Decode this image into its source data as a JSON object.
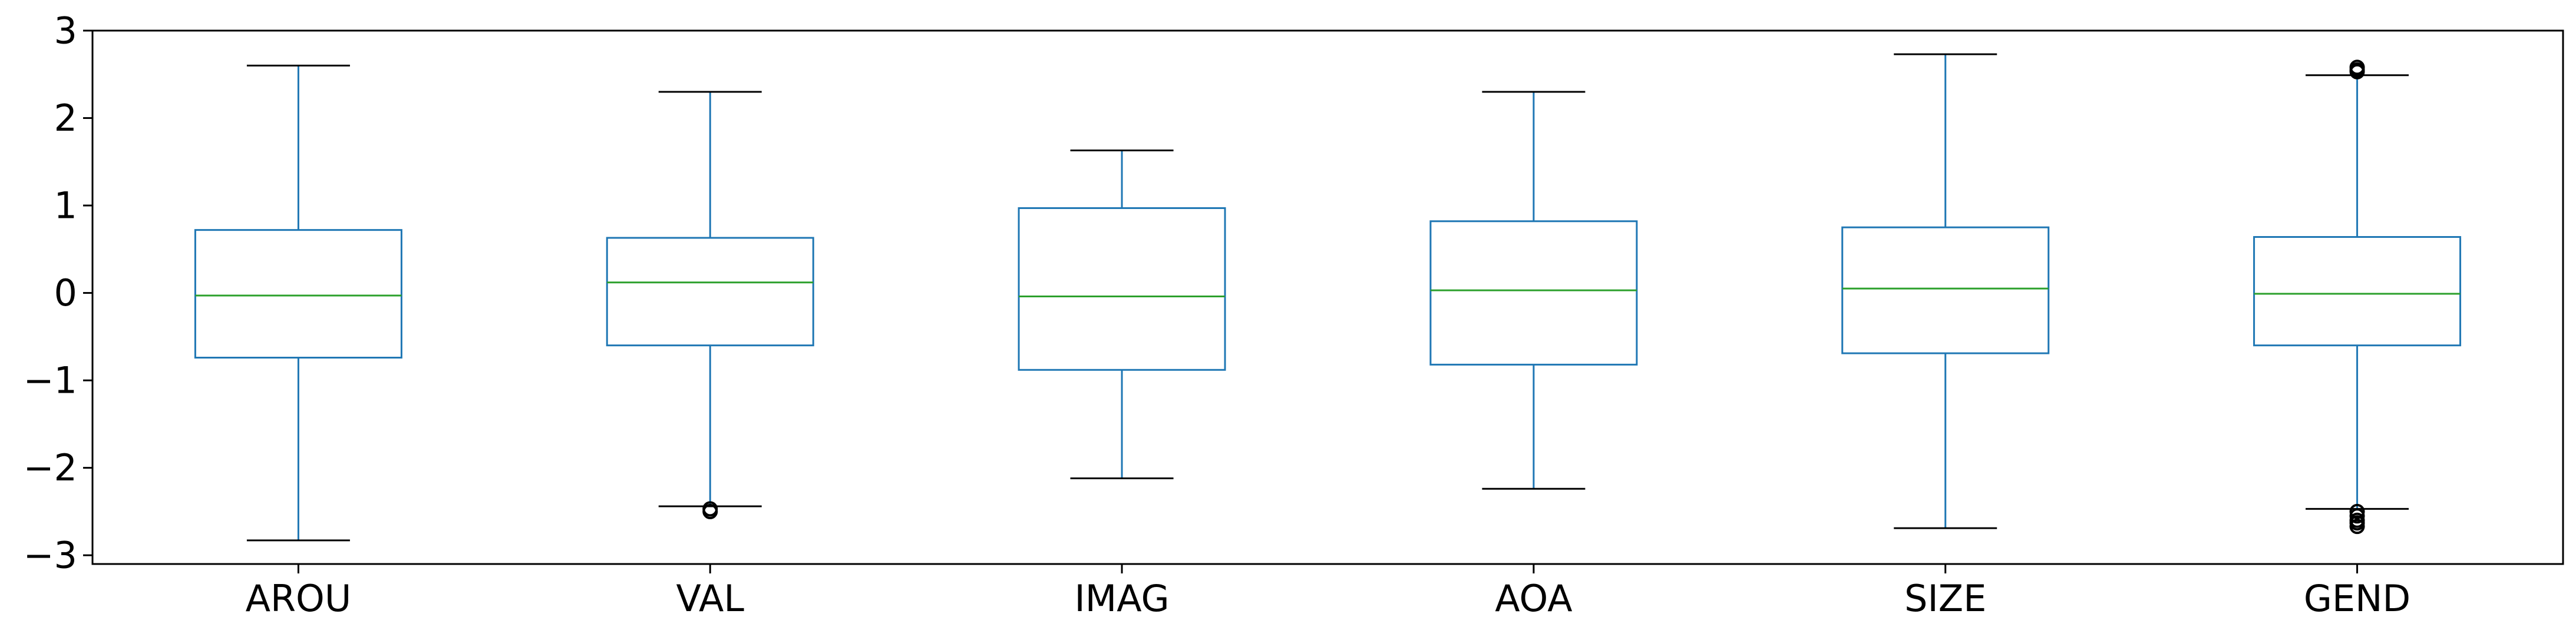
{
  "chart_data": {
    "type": "box",
    "title": "",
    "xlabel": "",
    "ylabel": "",
    "ylim": [
      -3.1,
      3.0
    ],
    "yticks": [
      3,
      2,
      1,
      0,
      -1,
      -2,
      -3
    ],
    "ytick_labels": [
      "3",
      "2",
      "1",
      "0",
      "−1",
      "−2",
      "−3"
    ],
    "grid": false,
    "colors": {
      "box": "#1f77b4",
      "median": "#2ca02c",
      "whisker": "#1f77b4",
      "cap": "#000000",
      "flier": "#000000",
      "axis": "#000000"
    },
    "categories": [
      "AROU",
      "VAL",
      "IMAG",
      "AOA",
      "SIZE",
      "GEND"
    ],
    "boxes": [
      {
        "label": "AROU",
        "whisker_low": -2.83,
        "q1": -0.74,
        "median": -0.03,
        "q3": 0.72,
        "whisker_high": 2.6,
        "fliers": []
      },
      {
        "label": "VAL",
        "whisker_low": -2.44,
        "q1": -0.6,
        "median": 0.12,
        "q3": 0.63,
        "whisker_high": 2.3,
        "fliers": [
          -2.47,
          -2.5
        ]
      },
      {
        "label": "IMAG",
        "whisker_low": -2.12,
        "q1": -0.88,
        "median": -0.04,
        "q3": 0.97,
        "whisker_high": 1.63,
        "fliers": []
      },
      {
        "label": "AOA",
        "whisker_low": -2.24,
        "q1": -0.82,
        "median": 0.03,
        "q3": 0.82,
        "whisker_high": 2.3,
        "fliers": []
      },
      {
        "label": "SIZE",
        "whisker_low": -2.69,
        "q1": -0.69,
        "median": 0.05,
        "q3": 0.75,
        "whisker_high": 2.73,
        "fliers": []
      },
      {
        "label": "GEND",
        "whisker_low": -2.47,
        "q1": -0.6,
        "median": -0.01,
        "q3": 0.64,
        "whisker_high": 2.49,
        "fliers": [
          2.53,
          2.55,
          2.58,
          -2.5,
          -2.55,
          -2.6,
          -2.63,
          -2.67
        ]
      }
    ]
  }
}
